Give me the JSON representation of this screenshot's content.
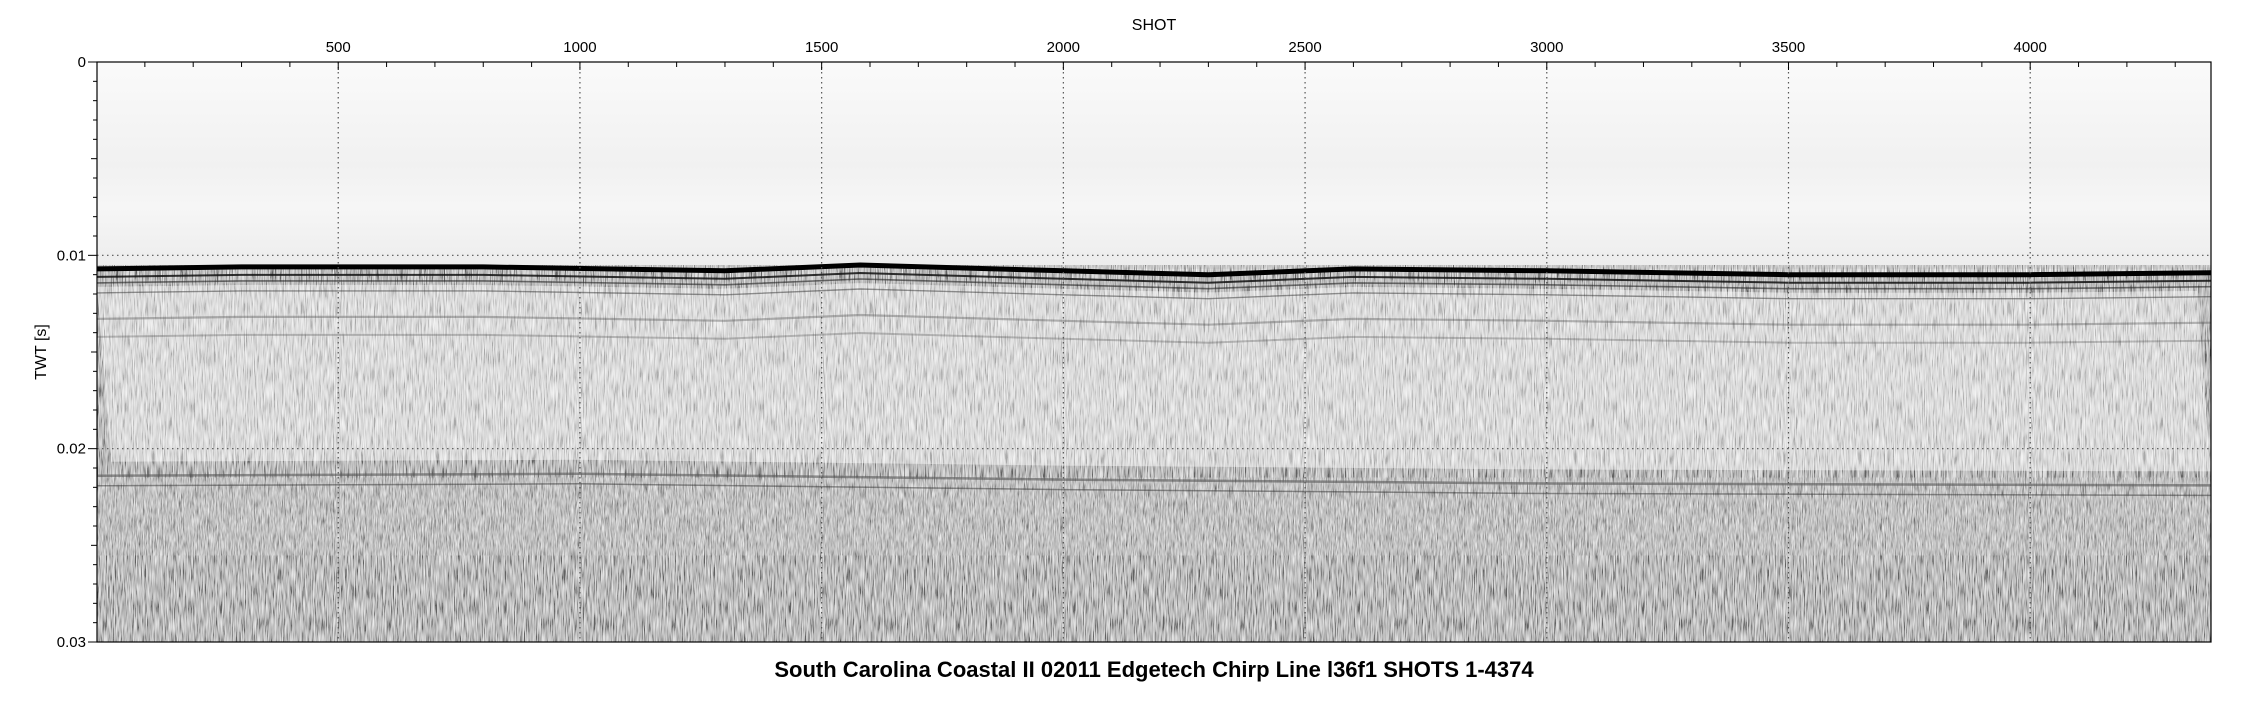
{
  "chart_data": {
    "type": "heatmap",
    "title": "South Carolina Coastal II 02011 Edgetech Chirp Line l36f1 SHOTS 1-4374",
    "xlabel": "SHOT",
    "ylabel": "TWT [s]",
    "xlim": [
      1,
      4374
    ],
    "ylim": [
      0,
      0.03
    ],
    "y_inverted": true,
    "x_axis_position": "top",
    "x_ticks": [
      500,
      1000,
      1500,
      2000,
      2500,
      3000,
      3500,
      4000
    ],
    "x_tick_labels": [
      "500",
      "1000",
      "1500",
      "2000",
      "2500",
      "3000",
      "3500",
      "4000"
    ],
    "y_ticks": [
      0,
      0.01,
      0.02,
      0.03
    ],
    "y_tick_labels": [
      "0",
      "0.01",
      "0.02",
      "0.03"
    ],
    "grid": true,
    "grid_style": "dotted",
    "colormap": "grayscale",
    "seafloor_twt": [
      {
        "shot": 1,
        "twt": 0.0107
      },
      {
        "shot": 300,
        "twt": 0.0106
      },
      {
        "shot": 800,
        "twt": 0.0106
      },
      {
        "shot": 1300,
        "twt": 0.0108
      },
      {
        "shot": 1580,
        "twt": 0.0105
      },
      {
        "shot": 2000,
        "twt": 0.0108
      },
      {
        "shot": 2300,
        "twt": 0.011
      },
      {
        "shot": 2600,
        "twt": 0.0107
      },
      {
        "shot": 3000,
        "twt": 0.0108
      },
      {
        "shot": 3500,
        "twt": 0.011
      },
      {
        "shot": 4000,
        "twt": 0.011
      },
      {
        "shot": 4374,
        "twt": 0.0109
      }
    ],
    "multiple_twt": [
      {
        "shot": 1,
        "twt": 0.0214
      },
      {
        "shot": 1000,
        "twt": 0.0213
      },
      {
        "shot": 2000,
        "twt": 0.0216
      },
      {
        "shot": 3000,
        "twt": 0.0218
      },
      {
        "shot": 4374,
        "twt": 0.0219
      }
    ]
  },
  "colors": {
    "background": "#ffffff",
    "frame": "#000000",
    "grid": "#555555",
    "water_column": "#f2f2f2",
    "seafloor": "#000000"
  }
}
